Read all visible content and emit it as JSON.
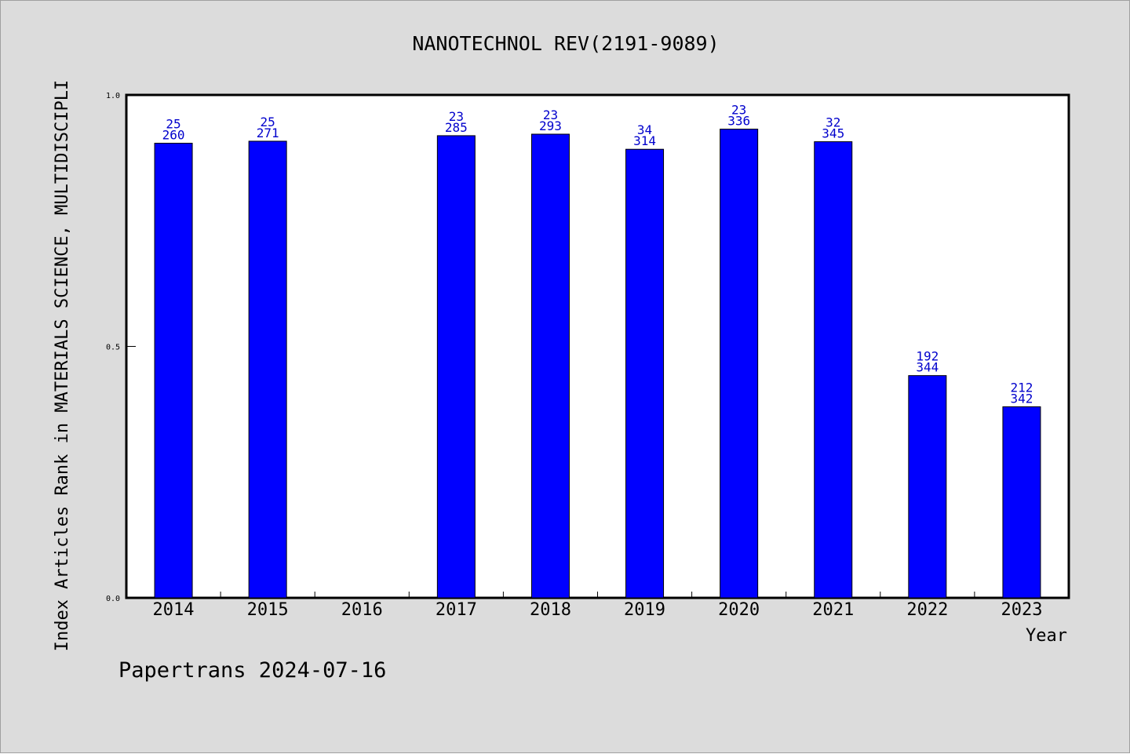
{
  "chart_data": {
    "type": "bar",
    "title": "NANOTECHNOL REV(2191-9089)",
    "xlabel": "Year",
    "ylabel": "Index Articles Rank in MATERIALS SCIENCE, MULTIDISCIPLI",
    "categories": [
      "2014",
      "2015",
      "2016",
      "2017",
      "2018",
      "2019",
      "2020",
      "2021",
      "2022",
      "2023"
    ],
    "series": [
      {
        "values": [
          0.904,
          0.908,
          null,
          0.919,
          0.922,
          0.892,
          0.932,
          0.907,
          0.442,
          0.38
        ],
        "rank": [
          "25",
          "25",
          null,
          "23",
          "23",
          "34",
          "23",
          "32",
          "192",
          "212"
        ],
        "total": [
          "260",
          "271",
          null,
          "285",
          "293",
          "314",
          "336",
          "345",
          "344",
          "342"
        ],
        "color": "#0000ff"
      }
    ],
    "ylim": [
      0.0,
      1.0
    ],
    "yticks": [
      "0.0",
      "0.5",
      "1.0"
    ],
    "grid": false,
    "plot_background": "#ffffff",
    "page_background": "#dcdcdc",
    "label_color": "#0000cc"
  },
  "footer": "Papertrans 2024-07-16"
}
